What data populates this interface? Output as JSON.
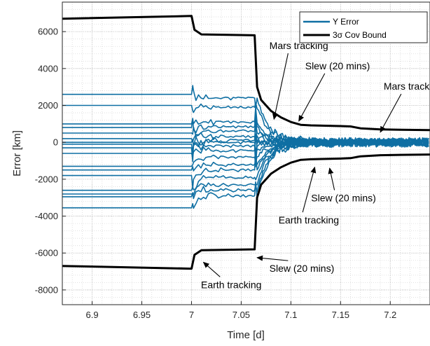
{
  "chart_data": {
    "type": "line",
    "xlabel": "Time [d]",
    "ylabel": "Error [km]",
    "xlim": [
      6.87,
      7.24
    ],
    "ylim": [
      -8800,
      7600
    ],
    "xticks": [
      6.9,
      6.95,
      7,
      7.05,
      7.1,
      7.15,
      7.2
    ],
    "xtick_labels": [
      "6.9",
      "6.95",
      "7",
      "7.05",
      "7.1",
      "7.15",
      "7.2"
    ],
    "yticks": [
      -8000,
      -6000,
      -4000,
      -2000,
      0,
      2000,
      4000,
      6000
    ],
    "ytick_labels": [
      "-8000",
      "-6000",
      "-4000",
      "-2000",
      "0",
      "2000",
      "4000",
      "6000"
    ],
    "grid": true,
    "legend_position": "top-right",
    "series": [
      {
        "name": "Y Error",
        "color": "#0f6fa3",
        "note_style": "many Monte Carlo traces",
        "initial_levels": [
          2600,
          2000,
          1000,
          800,
          500,
          200,
          0,
          -100,
          -300,
          -600,
          -1300,
          -1500,
          -1800,
          -2600,
          -2800,
          -2950,
          -3550
        ],
        "mid_levels": [
          2400,
          1900,
          1100,
          850,
          600,
          300,
          100,
          0,
          -200,
          -450,
          -800,
          -1200,
          -1500,
          -1900,
          -2300,
          -2600,
          -2900
        ],
        "final_spread": 420
      },
      {
        "name": "3σ Cov Bound",
        "color": "#000000",
        "upper": [
          [
            6.87,
            6700
          ],
          [
            7.0,
            6850
          ],
          [
            7.003,
            6100
          ],
          [
            7.01,
            5850
          ],
          [
            7.0635,
            5800
          ],
          [
            7.066,
            3000
          ],
          [
            7.07,
            2300
          ],
          [
            7.08,
            1700
          ],
          [
            7.09,
            1350
          ],
          [
            7.1,
            1100
          ],
          [
            7.11,
            950
          ],
          [
            7.12,
            920
          ],
          [
            7.15,
            880
          ],
          [
            7.16,
            860
          ],
          [
            7.17,
            760
          ],
          [
            7.19,
            700
          ],
          [
            7.21,
            680
          ],
          [
            7.24,
            660
          ]
        ],
        "lower": [
          [
            6.87,
            -6700
          ],
          [
            7.0,
            -6850
          ],
          [
            7.003,
            -6100
          ],
          [
            7.01,
            -5850
          ],
          [
            7.0635,
            -5800
          ],
          [
            7.066,
            -3000
          ],
          [
            7.07,
            -2300
          ],
          [
            7.08,
            -1700
          ],
          [
            7.09,
            -1350
          ],
          [
            7.1,
            -1100
          ],
          [
            7.11,
            -950
          ],
          [
            7.12,
            -920
          ],
          [
            7.15,
            -880
          ],
          [
            7.16,
            -860
          ],
          [
            7.17,
            -760
          ],
          [
            7.19,
            -700
          ],
          [
            7.21,
            -680
          ],
          [
            7.24,
            -660
          ]
        ]
      }
    ],
    "legend": [
      "Y Error",
      "3σ Cov Bound"
    ],
    "annotations": [
      {
        "text": "Mars tracking",
        "x": 7.108,
        "y": 5050,
        "anchor": "middle",
        "arrow_to": [
          7.083,
          1250
        ]
      },
      {
        "text": "Slew (20 mins)",
        "x": 7.147,
        "y": 3960,
        "anchor": "middle",
        "arrow_to": [
          7.108,
          1150
        ]
      },
      {
        "text": "Mars tracking",
        "x": 7.223,
        "y": 2850,
        "anchor": "middle",
        "arrow_to": [
          7.19,
          550
        ]
      },
      {
        "text": "Slew (20 mins)",
        "x": 7.153,
        "y": -3200,
        "anchor": "middle",
        "arrow_to": [
          7.139,
          -1400
        ]
      },
      {
        "text": "Earth tracking",
        "x": 7.118,
        "y": -4400,
        "anchor": "middle",
        "arrow_to": [
          7.124,
          -1350
        ]
      },
      {
        "text": "Slew (20 mins)",
        "x": 7.111,
        "y": -7020,
        "anchor": "middle",
        "arrow_to": [
          7.066,
          -6250
        ]
      },
      {
        "text": "Earth tracking",
        "x": 7.04,
        "y": -7900,
        "anchor": "middle",
        "arrow_to": [
          7.012,
          -6500
        ]
      }
    ]
  }
}
